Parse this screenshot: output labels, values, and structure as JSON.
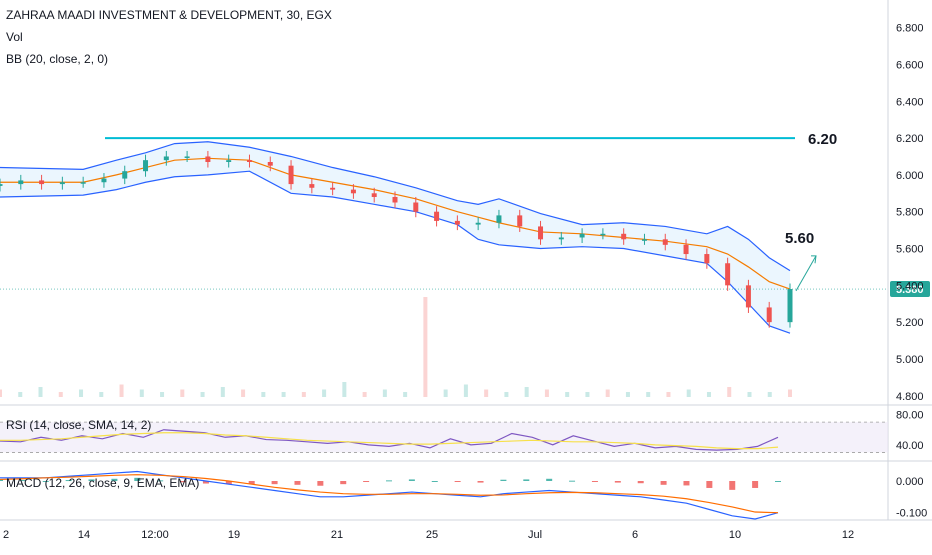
{
  "header": {
    "symbol_title": "ZAHRAA MAADI INVESTMENT & DEVELOPMENT, 30, EGX",
    "vol_label": "Vol",
    "bb_label": "BB (20, close, 2, 0)",
    "rsi_label": "RSI (14, close, SMA, 14, 2)",
    "macd_label": "MACD (12, 26, close, 9, EMA, EMA)"
  },
  "colors": {
    "up": "#26a69a",
    "down": "#ef5350",
    "bb_band": "#2962ff",
    "bb_basis": "#f57c00",
    "bb_fill": "#e3f2fd",
    "hline": "#00bcd4",
    "rsi_line": "#7e57c2",
    "rsi_ma": "#f7e04a",
    "rsi_zone": "#ede7f6",
    "macd_line": "#2962ff",
    "signal_line": "#ff6d00",
    "last_price_bg": "#26a69a",
    "arrow": "#26a69a"
  },
  "annotations": {
    "resistance_label": "6.20",
    "target_label": "5.60",
    "last_price": "5.380"
  },
  "chart_data": [
    {
      "type": "line",
      "title": "ZAHRAA MAADI INVESTMENT & DEVELOPMENT, 30, EGX",
      "ylim": [
        4.75,
        6.95
      ],
      "y_ticks": [
        "6.800",
        "6.600",
        "6.400",
        "6.200",
        "6.000",
        "5.800",
        "5.600",
        "5.400",
        "5.200",
        "5.000",
        "4.800"
      ],
      "x_tick_labels": [
        "2",
        "14",
        "12:00",
        "19",
        "21",
        "25",
        "Jul",
        "6",
        "10",
        "12"
      ],
      "series": [
        {
          "name": "close",
          "x": [
            0,
            5,
            10,
            15,
            20,
            25,
            30,
            35,
            40,
            45,
            50,
            55,
            60,
            65,
            70,
            75,
            80,
            85,
            90,
            95,
            100,
            105,
            110,
            115,
            120,
            125,
            130,
            135,
            140,
            145,
            150,
            155,
            160,
            165,
            170,
            175,
            180,
            185,
            190
          ],
          "values": [
            5.95,
            5.97,
            5.95,
            5.96,
            5.96,
            5.98,
            6.02,
            6.08,
            6.1,
            6.1,
            6.07,
            6.08,
            6.07,
            6.05,
            5.95,
            5.93,
            5.92,
            5.9,
            5.88,
            5.85,
            5.8,
            5.75,
            5.73,
            5.74,
            5.78,
            5.72,
            5.65,
            5.66,
            5.68,
            5.68,
            5.65,
            5.65,
            5.62,
            5.57,
            5.52,
            5.4,
            5.28,
            5.2,
            5.38
          ]
        },
        {
          "name": "bb_upper",
          "x": [
            0,
            20,
            28,
            35,
            42,
            50,
            60,
            70,
            80,
            90,
            100,
            110,
            115,
            120,
            130,
            140,
            150,
            160,
            170,
            175,
            180,
            185,
            190
          ],
          "values": [
            6.04,
            6.03,
            6.08,
            6.12,
            6.17,
            6.18,
            6.15,
            6.1,
            6.04,
            5.99,
            5.93,
            5.86,
            5.84,
            5.87,
            5.79,
            5.73,
            5.74,
            5.72,
            5.68,
            5.72,
            5.65,
            5.55,
            5.48
          ]
        },
        {
          "name": "bb_basis",
          "x": [
            0,
            20,
            28,
            35,
            42,
            50,
            60,
            70,
            80,
            90,
            100,
            110,
            115,
            120,
            130,
            140,
            150,
            160,
            170,
            175,
            180,
            185,
            190
          ],
          "values": [
            5.96,
            5.96,
            6.0,
            6.04,
            6.08,
            6.09,
            6.08,
            6.0,
            5.96,
            5.92,
            5.87,
            5.8,
            5.77,
            5.74,
            5.69,
            5.68,
            5.66,
            5.64,
            5.61,
            5.57,
            5.5,
            5.42,
            5.38
          ]
        },
        {
          "name": "bb_lower",
          "x": [
            0,
            20,
            28,
            35,
            42,
            50,
            60,
            70,
            80,
            90,
            100,
            110,
            115,
            120,
            130,
            140,
            150,
            160,
            170,
            175,
            180,
            185,
            190
          ],
          "values": [
            5.88,
            5.89,
            5.92,
            5.96,
            5.99,
            6.0,
            6.02,
            5.9,
            5.88,
            5.84,
            5.8,
            5.73,
            5.65,
            5.62,
            5.6,
            5.61,
            5.6,
            5.56,
            5.52,
            5.42,
            5.3,
            5.18,
            5.14
          ]
        }
      ],
      "volume": [
        3,
        2,
        4,
        2,
        3,
        2,
        5,
        3,
        2,
        3,
        2,
        4,
        3,
        2,
        2,
        2,
        3,
        6,
        2,
        3,
        2,
        40,
        3,
        5,
        3,
        2,
        4,
        3,
        2,
        2,
        3,
        2,
        2,
        2,
        3,
        2,
        4,
        2,
        2,
        3
      ],
      "horizontal_line": 6.2
    },
    {
      "type": "line",
      "title": "RSI (14, close, SMA, 14, 2)",
      "ylim": [
        20,
        90
      ],
      "y_ticks": [
        "80.00",
        "40.00"
      ],
      "series": [
        {
          "name": "RSI",
          "values": [
            45,
            44,
            50,
            46,
            52,
            48,
            55,
            50,
            60,
            58,
            56,
            50,
            52,
            47,
            46,
            44,
            42,
            44,
            40,
            38,
            42,
            36,
            48,
            40,
            42,
            55,
            50,
            40,
            52,
            45,
            38,
            42,
            36,
            38,
            34,
            33,
            34,
            38,
            50
          ]
        },
        {
          "name": "RSI MA",
          "values": [
            46,
            46,
            47,
            48,
            50,
            52,
            54,
            55,
            56,
            56,
            55,
            53,
            52,
            50,
            48,
            46,
            45,
            44,
            43,
            42,
            41,
            41,
            42,
            43,
            44,
            45,
            46,
            45,
            44,
            44,
            43,
            42,
            40,
            39,
            38,
            36,
            35,
            35,
            37
          ]
        }
      ]
    },
    {
      "type": "line",
      "title": "MACD (12, 26, close, 9, EMA, EMA)",
      "ylim": [
        -0.12,
        0.06
      ],
      "y_ticks": [
        "0.000",
        "-0.100"
      ],
      "series": [
        {
          "name": "MACD",
          "values": [
            0.01,
            0.01,
            0.01,
            0.015,
            0.02,
            0.025,
            0.03,
            0.02,
            0.01,
            0.0,
            -0.01,
            -0.02,
            -0.03,
            -0.04,
            -0.05,
            -0.05,
            -0.045,
            -0.04,
            -0.035,
            -0.04,
            -0.045,
            -0.05,
            -0.04,
            -0.035,
            -0.03,
            -0.035,
            -0.04,
            -0.045,
            -0.05,
            -0.06,
            -0.07,
            -0.09,
            -0.11,
            -0.12,
            -0.1
          ]
        },
        {
          "name": "Signal",
          "values": [
            0.005,
            0.007,
            0.01,
            0.012,
            0.015,
            0.018,
            0.02,
            0.018,
            0.014,
            0.008,
            0.0,
            -0.01,
            -0.02,
            -0.028,
            -0.035,
            -0.04,
            -0.042,
            -0.042,
            -0.04,
            -0.04,
            -0.042,
            -0.045,
            -0.044,
            -0.04,
            -0.037,
            -0.036,
            -0.037,
            -0.04,
            -0.043,
            -0.048,
            -0.056,
            -0.068,
            -0.082,
            -0.098,
            -0.1
          ]
        },
        {
          "name": "Histogram",
          "values": [
            0.005,
            0.003,
            0.0,
            0.003,
            0.005,
            0.007,
            0.01,
            0.002,
            -0.004,
            -0.008,
            -0.01,
            -0.01,
            -0.01,
            -0.012,
            -0.015,
            -0.01,
            -0.003,
            0.002,
            0.005,
            0.0,
            -0.003,
            -0.005,
            0.004,
            0.005,
            0.007,
            0.001,
            -0.003,
            -0.005,
            -0.007,
            -0.012,
            -0.014,
            -0.022,
            -0.028,
            -0.022,
            0.0
          ]
        }
      ]
    }
  ]
}
